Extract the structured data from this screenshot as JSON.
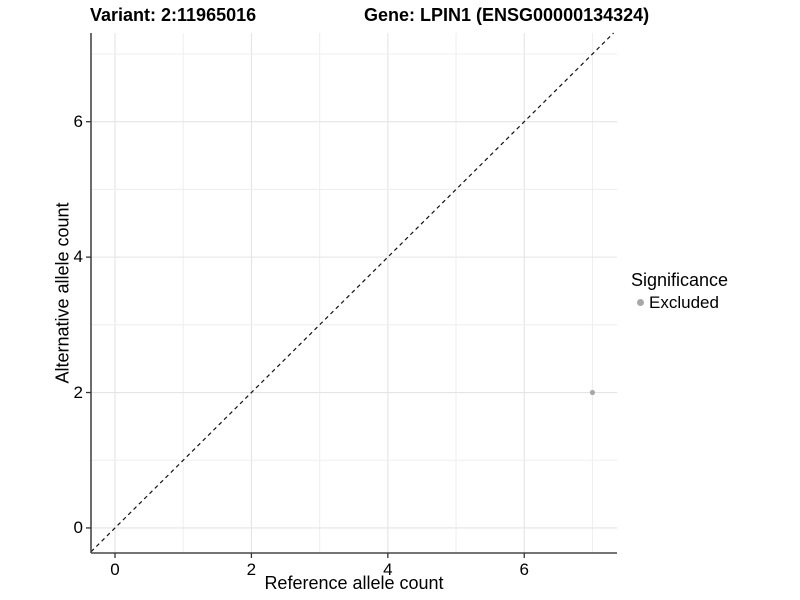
{
  "titles": {
    "variant": "Variant: 2:11965016",
    "gene": "Gene: LPIN1 (ENSG00000134324)"
  },
  "axes": {
    "x": {
      "label": "Reference allele count",
      "tick_labels": [
        "0",
        "2",
        "4",
        "6"
      ]
    },
    "y": {
      "label": "Alternative allele count",
      "tick_labels": [
        "0",
        "2",
        "4",
        "6"
      ]
    }
  },
  "legend": {
    "title": "Significance",
    "items": [
      {
        "label": "Excluded",
        "color": "#a8a8a8"
      }
    ]
  },
  "colors": {
    "background": "#ffffff",
    "grid_major": "#e4e4e4",
    "grid_minor": "#efefef",
    "axis_line": "#474747",
    "tick_mark": "#333333",
    "text": "#000000",
    "point": "#a8a8a8",
    "reference_line": "#111111"
  },
  "chart_data": {
    "type": "scatter",
    "title": "Variant: 2:11965016 | Gene: LPIN1 (ENSG00000134324)",
    "xlabel": "Reference allele count",
    "ylabel": "Alternative allele count",
    "xlim": [
      -0.352,
      7.36
    ],
    "ylim": [
      -0.37,
      7.31
    ],
    "x_ticks": [
      0,
      2,
      4,
      6
    ],
    "y_ticks": [
      0,
      2,
      4,
      6
    ],
    "x_grid": [
      0,
      1,
      2,
      3,
      4,
      5,
      6,
      7
    ],
    "y_grid": [
      0,
      1,
      2,
      3,
      4,
      5,
      6,
      7
    ],
    "grid": true,
    "legend_position": "right",
    "series": [
      {
        "name": "Excluded",
        "color": "#a8a8a8",
        "points": [
          {
            "x": 7,
            "y": 2
          }
        ]
      }
    ],
    "reference_line": {
      "style": "dashed",
      "slope": 1,
      "intercept": 0,
      "color": "#111111"
    }
  }
}
